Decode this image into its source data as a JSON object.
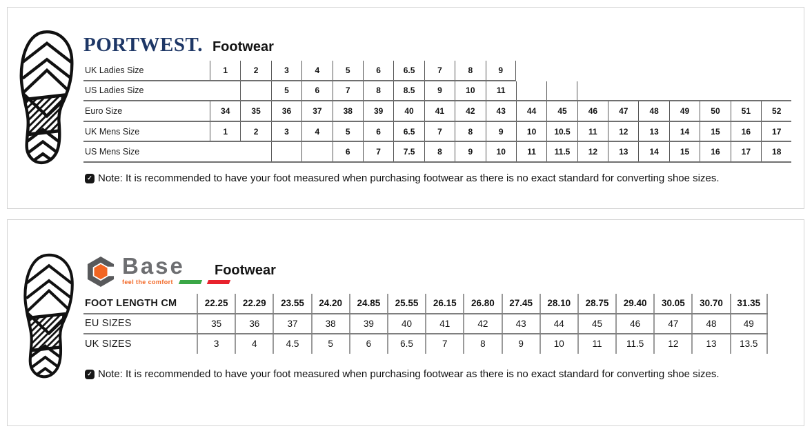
{
  "portwest": {
    "brand": "PORTWEST.",
    "product": "Footwear",
    "table": {
      "rows": [
        {
          "label": "UK Ladies Size",
          "values": [
            "1",
            "2",
            "3",
            "4",
            "5",
            "6",
            "6.5",
            "7",
            "8",
            "9"
          ],
          "bottom": true,
          "right_edge": true
        },
        {
          "label": "US Ladies Size",
          "values": [
            "",
            "",
            "5",
            "6",
            "7",
            "8",
            "8.5",
            "9",
            "10",
            "11",
            "",
            ""
          ],
          "no_left": [
            0
          ],
          "right_edge": true
        },
        {
          "label": "Euro Size",
          "values": [
            "34",
            "35",
            "36",
            "37",
            "38",
            "39",
            "40",
            "41",
            "42",
            "43",
            "44",
            "45",
            "46",
            "47",
            "48",
            "49",
            "50",
            "51",
            "52"
          ],
          "top": true,
          "bottom": true
        },
        {
          "label": "UK Mens Size",
          "values": [
            "1",
            "2",
            "3",
            "4",
            "5",
            "6",
            "6.5",
            "7",
            "8",
            "9",
            "10",
            "10.5",
            "11",
            "12",
            "13",
            "14",
            "15",
            "16",
            "17"
          ],
          "bottom": true
        },
        {
          "label": "US Mens Size",
          "values": [
            "",
            "",
            "",
            "",
            "6",
            "7",
            "7.5",
            "8",
            "9",
            "10",
            "11",
            "11.5",
            "12",
            "13",
            "14",
            "15",
            "16",
            "17",
            "18"
          ],
          "no_left": [
            0,
            1
          ],
          "bottom": true
        }
      ]
    },
    "note": "Note: It is recommended to have your foot measured when purchasing footwear as there is no exact standard for converting shoe sizes."
  },
  "base": {
    "brand": "Base",
    "tagline": "feel the comfort",
    "product": "Footwear",
    "table": {
      "rows": [
        {
          "label": "FOOT LENGTH CM",
          "values": [
            "22.25",
            "22.29",
            "23.55",
            "24.20",
            "24.85",
            "25.55",
            "26.15",
            "26.80",
            "27.45",
            "28.10",
            "28.75",
            "29.40",
            "30.05",
            "30.70",
            "31.35"
          ],
          "header": true,
          "bottom": true,
          "right_edge": true
        },
        {
          "label": "EU SIZES",
          "values": [
            "35",
            "36",
            "37",
            "38",
            "39",
            "40",
            "41",
            "42",
            "43",
            "44",
            "45",
            "46",
            "47",
            "48",
            "49"
          ],
          "bottom": true,
          "right_edge": true
        },
        {
          "label": "UK SIZES",
          "values": [
            "3",
            "4",
            "4.5",
            "5",
            "6",
            "6.5",
            "7",
            "8",
            "9",
            "10",
            "11",
            "11.5",
            "12",
            "13",
            "13.5"
          ],
          "right_edge": true
        }
      ]
    },
    "note": "Note: It is recommended to have your foot measured when purchasing footwear as there is no exact standard for converting shoe sizes."
  },
  "icons": {
    "note_check": "✓",
    "sole": "shoe-sole-tread",
    "base_hexnut": "hex-nut"
  },
  "colors": {
    "portwest_navy": "#1e3766",
    "base_gray": "#6d6e71",
    "base_orange": "#f26522",
    "tagline_green": "#3aa746",
    "tagline_red": "#e8222d",
    "panel_border": "#d3d3d3",
    "table_line_dark": "#555555",
    "table_line_gray": "#9a9a9a",
    "text": "#111111"
  }
}
